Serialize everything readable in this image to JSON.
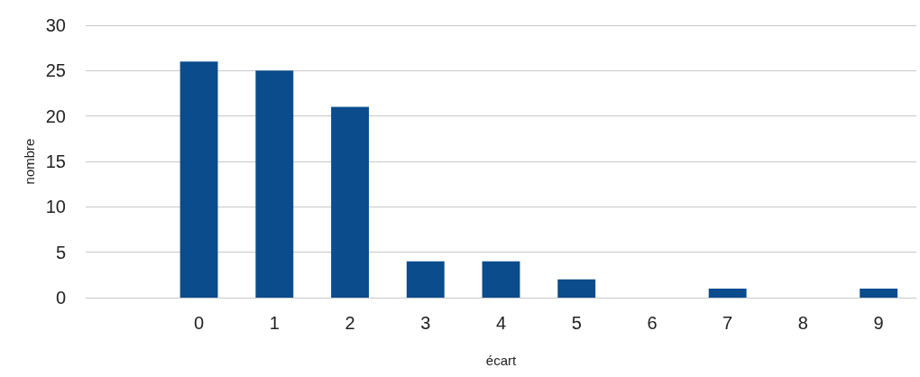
{
  "chart_data": {
    "type": "bar",
    "xlabel": "écart",
    "ylabel": "nombre",
    "categories": [
      null,
      "0",
      "1",
      "2",
      "3",
      "4",
      "5",
      "6",
      "7",
      "8",
      "9"
    ],
    "values": [
      null,
      26,
      25,
      21,
      4,
      4,
      2,
      0,
      1,
      0,
      1
    ],
    "color": "#0a4c8c",
    "ylim": [
      0,
      30
    ],
    "yticks": [
      0,
      5,
      10,
      15,
      20,
      25,
      30
    ],
    "grid": "y"
  }
}
